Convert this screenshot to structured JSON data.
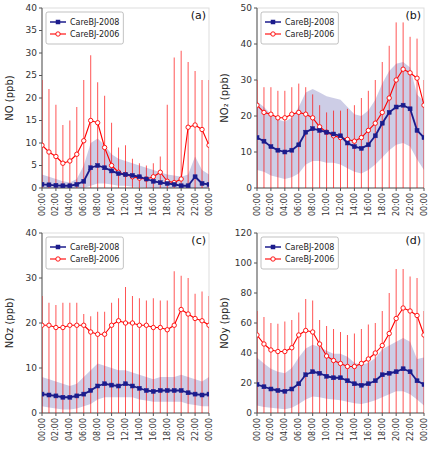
{
  "chart_data": [
    {
      "type": "line",
      "title": "(a)",
      "y_label": "NO (ppb)",
      "legend": "upper left",
      "x": [
        0,
        1,
        2,
        3,
        4,
        5,
        6,
        7,
        8,
        9,
        10,
        11,
        12,
        13,
        14,
        15,
        16,
        17,
        18,
        19,
        20,
        21,
        22,
        23,
        24
      ],
      "xlim": [
        0,
        24
      ],
      "xticks": [
        {
          "value": 0,
          "label": "00:00"
        },
        {
          "value": 2,
          "label": "02:00"
        },
        {
          "value": 4,
          "label": "04:00"
        },
        {
          "value": 6,
          "label": "06:00"
        },
        {
          "value": 8,
          "label": "08:00"
        },
        {
          "value": 10,
          "label": "10:00"
        },
        {
          "value": 12,
          "label": "12:00"
        },
        {
          "value": 14,
          "label": "14:00"
        },
        {
          "value": 16,
          "label": "16:00"
        },
        {
          "value": 18,
          "label": "18:00"
        },
        {
          "value": 20,
          "label": "20:00"
        },
        {
          "value": 22,
          "label": "22:00"
        },
        {
          "value": 24,
          "label": "00:00"
        }
      ],
      "ylim": [
        0,
        40
      ],
      "yticks": [
        0,
        5,
        10,
        15,
        20,
        25,
        30,
        35,
        40
      ],
      "series": [
        {
          "name": "CareBJ-2008",
          "color": "#1C1C8C",
          "marker": "square",
          "values": [
            0.8,
            0.7,
            0.6,
            0.5,
            0.5,
            0.8,
            1.5,
            4.5,
            5.0,
            4.5,
            3.8,
            3.2,
            3.0,
            2.8,
            2.5,
            2.0,
            1.5,
            1.2,
            1.0,
            0.8,
            0.5,
            0.5,
            2.5,
            1.0,
            0.8
          ],
          "band_low": [
            0.0,
            0.0,
            0.0,
            0.0,
            0.0,
            0.0,
            0.0,
            0.5,
            1.0,
            1.0,
            0.8,
            0.5,
            0.5,
            0.3,
            0.2,
            0.1,
            0.0,
            0.0,
            0.0,
            0.0,
            0.0,
            0.0,
            0.0,
            0.0,
            0.0
          ],
          "band_high": [
            3.0,
            2.5,
            2.0,
            1.5,
            1.2,
            2.0,
            5.0,
            10.0,
            11.0,
            9.5,
            7.5,
            6.5,
            6.0,
            5.5,
            5.0,
            4.5,
            4.0,
            3.5,
            3.0,
            2.8,
            2.5,
            3.0,
            7.0,
            4.0,
            3.0
          ]
        },
        {
          "name": "CareBJ-2006",
          "color": "#FF0000",
          "marker": "circle",
          "values": [
            9.5,
            8.0,
            7.0,
            5.5,
            6.0,
            7.5,
            10.5,
            15.0,
            14.5,
            9.0,
            5.0,
            3.5,
            3.0,
            2.5,
            2.2,
            2.0,
            2.5,
            3.5,
            1.5,
            1.2,
            2.0,
            13.5,
            14.0,
            13.0,
            9.5
          ],
          "error_low": [
            0.0,
            0.0,
            0.0,
            0.0,
            0.0,
            0.0,
            0.0,
            0.0,
            0.0,
            0.0,
            0.0,
            0.0,
            0.0,
            0.0,
            0.0,
            0.0,
            0.0,
            0.0,
            0.0,
            0.0,
            0.0,
            0.0,
            0.0,
            0.0,
            0.0
          ],
          "error_high": [
            24.0,
            22.0,
            18.5,
            14.0,
            15.0,
            18.0,
            24.0,
            29.5,
            23.5,
            20.5,
            14.5,
            9.0,
            9.5,
            6.5,
            5.5,
            5.0,
            5.5,
            7.0,
            18.5,
            29.0,
            30.5,
            28.0,
            26.0,
            24.0,
            24.0
          ]
        }
      ]
    },
    {
      "type": "line",
      "title": "(b)",
      "y_label": "NO₂ (ppb)",
      "legend": "upper left",
      "x": [
        0,
        1,
        2,
        3,
        4,
        5,
        6,
        7,
        8,
        9,
        10,
        11,
        12,
        13,
        14,
        15,
        16,
        17,
        18,
        19,
        20,
        21,
        22,
        23,
        24
      ],
      "xlim": [
        0,
        24
      ],
      "xticks": [
        {
          "value": 0,
          "label": "00:00"
        },
        {
          "value": 2,
          "label": "02:00"
        },
        {
          "value": 4,
          "label": "04:00"
        },
        {
          "value": 6,
          "label": "06:00"
        },
        {
          "value": 8,
          "label": "08:00"
        },
        {
          "value": 10,
          "label": "10:00"
        },
        {
          "value": 12,
          "label": "12:00"
        },
        {
          "value": 14,
          "label": "14:00"
        },
        {
          "value": 16,
          "label": "16:00"
        },
        {
          "value": 18,
          "label": "18:00"
        },
        {
          "value": 20,
          "label": "20:00"
        },
        {
          "value": 22,
          "label": "22:00"
        },
        {
          "value": 24,
          "label": "00:00"
        }
      ],
      "ylim": [
        0,
        50
      ],
      "yticks": [
        0,
        10,
        20,
        30,
        40,
        50
      ],
      "series": [
        {
          "name": "CareBJ-2008",
          "color": "#1C1C8C",
          "marker": "square",
          "values": [
            14.0,
            13.0,
            11.5,
            10.5,
            10.0,
            10.5,
            12.0,
            15.5,
            16.5,
            16.0,
            15.5,
            15.0,
            14.5,
            12.5,
            11.5,
            11.0,
            12.0,
            14.5,
            18.0,
            21.0,
            22.5,
            23.0,
            22.0,
            16.0,
            14.0
          ],
          "band_low": [
            5.0,
            4.5,
            3.5,
            3.0,
            2.5,
            3.0,
            4.0,
            6.5,
            7.5,
            7.5,
            7.0,
            7.0,
            6.5,
            5.5,
            4.5,
            4.0,
            5.0,
            6.5,
            8.5,
            10.5,
            12.0,
            12.5,
            11.5,
            8.0,
            5.0
          ],
          "band_high": [
            24.0,
            22.5,
            20.5,
            19.0,
            18.5,
            19.5,
            22.5,
            26.5,
            27.5,
            26.5,
            25.5,
            25.0,
            24.5,
            22.5,
            20.5,
            20.0,
            21.5,
            24.5,
            29.0,
            32.5,
            34.5,
            35.0,
            33.5,
            26.0,
            24.0
          ]
        },
        {
          "name": "CareBJ-2006",
          "color": "#FF0000",
          "marker": "circle",
          "values": [
            23.0,
            21.0,
            20.5,
            19.5,
            19.5,
            20.5,
            21.0,
            20.5,
            19.5,
            17.0,
            15.5,
            14.5,
            14.0,
            13.5,
            13.0,
            14.0,
            16.0,
            18.0,
            21.0,
            25.0,
            30.0,
            33.0,
            32.0,
            30.5,
            23.0
          ],
          "error_low": [
            0.0,
            0.0,
            0.0,
            0.0,
            0.0,
            0.0,
            0.0,
            0.0,
            0.0,
            0.0,
            0.0,
            0.0,
            0.0,
            0.0,
            0.0,
            0.0,
            0.0,
            0.0,
            0.0,
            0.0,
            0.0,
            0.0,
            0.0,
            0.0,
            0.0
          ],
          "error_high": [
            30.0,
            28.0,
            28.0,
            27.0,
            27.0,
            28.0,
            29.0,
            28.0,
            26.0,
            23.0,
            21.0,
            21.5,
            21.5,
            22.0,
            23.0,
            25.0,
            27.0,
            30.0,
            35.0,
            39.5,
            46.0,
            46.0,
            42.0,
            41.5,
            30.0
          ]
        }
      ]
    },
    {
      "type": "line",
      "title": "(c)",
      "y_label": "NOz (ppb)",
      "legend": "upper left",
      "x": [
        0,
        1,
        2,
        3,
        4,
        5,
        6,
        7,
        8,
        9,
        10,
        11,
        12,
        13,
        14,
        15,
        16,
        17,
        18,
        19,
        20,
        21,
        22,
        23,
        24
      ],
      "xlim": [
        0,
        24
      ],
      "xticks": [
        {
          "value": 0,
          "label": "00:00"
        },
        {
          "value": 2,
          "label": "02:00"
        },
        {
          "value": 4,
          "label": "04:00"
        },
        {
          "value": 6,
          "label": "06:00"
        },
        {
          "value": 8,
          "label": "08:00"
        },
        {
          "value": 10,
          "label": "10:00"
        },
        {
          "value": 12,
          "label": "12:00"
        },
        {
          "value": 14,
          "label": "14:00"
        },
        {
          "value": 16,
          "label": "16:00"
        },
        {
          "value": 18,
          "label": "18:00"
        },
        {
          "value": 20,
          "label": "20:00"
        },
        {
          "value": 22,
          "label": "22:00"
        },
        {
          "value": 24,
          "label": "00:00"
        }
      ],
      "ylim": [
        0,
        40
      ],
      "yticks": [
        0,
        10,
        20,
        30,
        40
      ],
      "series": [
        {
          "name": "CareBJ-2008",
          "color": "#1C1C8C",
          "marker": "square",
          "values": [
            4.2,
            4.0,
            3.8,
            3.5,
            3.5,
            3.8,
            4.2,
            5.0,
            6.0,
            6.5,
            6.2,
            6.0,
            6.5,
            6.0,
            5.5,
            5.0,
            4.8,
            5.0,
            5.0,
            5.0,
            5.0,
            4.5,
            4.2,
            4.0,
            4.2
          ],
          "band_low": [
            1.5,
            1.2,
            1.0,
            0.8,
            0.8,
            1.0,
            1.5,
            2.0,
            3.0,
            3.5,
            3.5,
            3.5,
            3.5,
            3.5,
            3.0,
            2.8,
            2.5,
            2.5,
            2.5,
            2.5,
            2.5,
            2.0,
            1.8,
            1.5,
            1.5
          ],
          "band_high": [
            8.0,
            7.5,
            7.0,
            6.5,
            6.0,
            6.5,
            8.0,
            9.5,
            11.0,
            10.5,
            10.0,
            9.5,
            9.5,
            9.0,
            8.5,
            8.0,
            7.5,
            8.0,
            8.0,
            8.0,
            8.5,
            8.0,
            7.5,
            7.0,
            8.0
          ]
        },
        {
          "name": "CareBJ-2006",
          "color": "#FF0000",
          "marker": "circle",
          "values": [
            19.5,
            19.5,
            19.0,
            19.0,
            19.5,
            19.5,
            19.5,
            18.0,
            17.5,
            17.5,
            19.5,
            20.5,
            20.0,
            20.0,
            19.5,
            19.5,
            19.0,
            19.0,
            18.5,
            19.5,
            23.0,
            22.0,
            21.0,
            20.5,
            19.5
          ],
          "error_low": [
            0.0,
            0.0,
            0.0,
            0.0,
            0.0,
            0.0,
            0.0,
            0.0,
            0.0,
            0.0,
            0.0,
            0.0,
            0.0,
            0.0,
            0.0,
            0.0,
            0.0,
            0.0,
            0.0,
            0.0,
            0.0,
            0.0,
            0.0,
            0.0,
            0.0
          ],
          "error_high": [
            26.0,
            24.5,
            24.0,
            24.5,
            24.5,
            24.5,
            22.0,
            21.5,
            22.5,
            22.5,
            24.5,
            25.5,
            28.0,
            26.0,
            25.5,
            25.0,
            25.5,
            25.0,
            25.0,
            31.5,
            30.5,
            30.0,
            26.5,
            27.0,
            26.0
          ]
        }
      ]
    },
    {
      "type": "line",
      "title": "(d)",
      "y_label": "NOy (ppb)",
      "legend": "upper left",
      "x": [
        0,
        1,
        2,
        3,
        4,
        5,
        6,
        7,
        8,
        9,
        10,
        11,
        12,
        13,
        14,
        15,
        16,
        17,
        18,
        19,
        20,
        21,
        22,
        23,
        24
      ],
      "xlim": [
        0,
        24
      ],
      "xticks": [
        {
          "value": 0,
          "label": "00:00"
        },
        {
          "value": 2,
          "label": "02:00"
        },
        {
          "value": 4,
          "label": "04:00"
        },
        {
          "value": 6,
          "label": "06:00"
        },
        {
          "value": 8,
          "label": "08:00"
        },
        {
          "value": 10,
          "label": "10:00"
        },
        {
          "value": 12,
          "label": "12:00"
        },
        {
          "value": 14,
          "label": "14:00"
        },
        {
          "value": 16,
          "label": "16:00"
        },
        {
          "value": 18,
          "label": "18:00"
        },
        {
          "value": 20,
          "label": "20:00"
        },
        {
          "value": 22,
          "label": "22:00"
        },
        {
          "value": 24,
          "label": "00:00"
        }
      ],
      "ylim": [
        0,
        120
      ],
      "yticks": [
        0,
        20,
        40,
        60,
        80,
        100,
        120
      ],
      "series": [
        {
          "name": "CareBJ-2008",
          "color": "#1C1C8C",
          "marker": "square",
          "values": [
            19.0,
            17.5,
            16.0,
            15.0,
            14.5,
            16.0,
            19.5,
            25.5,
            27.5,
            26.5,
            24.5,
            23.5,
            23.5,
            21.5,
            19.5,
            18.5,
            19.5,
            21.5,
            25.5,
            26.5,
            27.5,
            29.5,
            27.5,
            21.5,
            19.0
          ],
          "band_low": [
            5.0,
            4.0,
            3.5,
            3.0,
            2.5,
            3.5,
            6.0,
            9.0,
            11.0,
            10.5,
            9.5,
            9.0,
            8.5,
            7.5,
            6.5,
            6.0,
            7.0,
            8.5,
            10.5,
            12.5,
            14.5,
            14.5,
            12.5,
            9.0,
            5.0
          ],
          "band_high": [
            37.0,
            33.0,
            29.5,
            27.5,
            26.5,
            30.0,
            37.0,
            43.0,
            45.5,
            44.0,
            41.5,
            39.5,
            39.5,
            37.5,
            33.5,
            32.0,
            33.5,
            36.5,
            42.5,
            45.0,
            47.5,
            50.0,
            47.5,
            36.0,
            37.0
          ]
        },
        {
          "name": "CareBJ-2006",
          "color": "#FF0000",
          "marker": "circle",
          "values": [
            52.0,
            46.0,
            42.0,
            41.0,
            41.0,
            43.5,
            52.0,
            55.0,
            54.0,
            46.0,
            38.0,
            35.0,
            33.0,
            31.0,
            31.0,
            33.0,
            36.0,
            40.0,
            45.0,
            53.0,
            63.0,
            70.0,
            68.0,
            65.0,
            52.0
          ],
          "error_low": [
            0.0,
            0.0,
            0.0,
            0.0,
            0.0,
            0.0,
            0.0,
            0.0,
            0.0,
            0.0,
            0.0,
            0.0,
            0.0,
            0.0,
            0.0,
            0.0,
            0.0,
            0.0,
            0.0,
            0.0,
            0.0,
            0.0,
            0.0,
            0.0,
            0.0
          ],
          "error_high": [
            68.0,
            64.0,
            60.0,
            59.5,
            61.0,
            62.0,
            67.0,
            76.0,
            75.0,
            62.0,
            58.0,
            56.0,
            54.0,
            52.0,
            53.0,
            56.0,
            59.0,
            60.0,
            68.0,
            80.0,
            96.0,
            96.0,
            91.0,
            90.0,
            68.0
          ]
        }
      ]
    }
  ]
}
